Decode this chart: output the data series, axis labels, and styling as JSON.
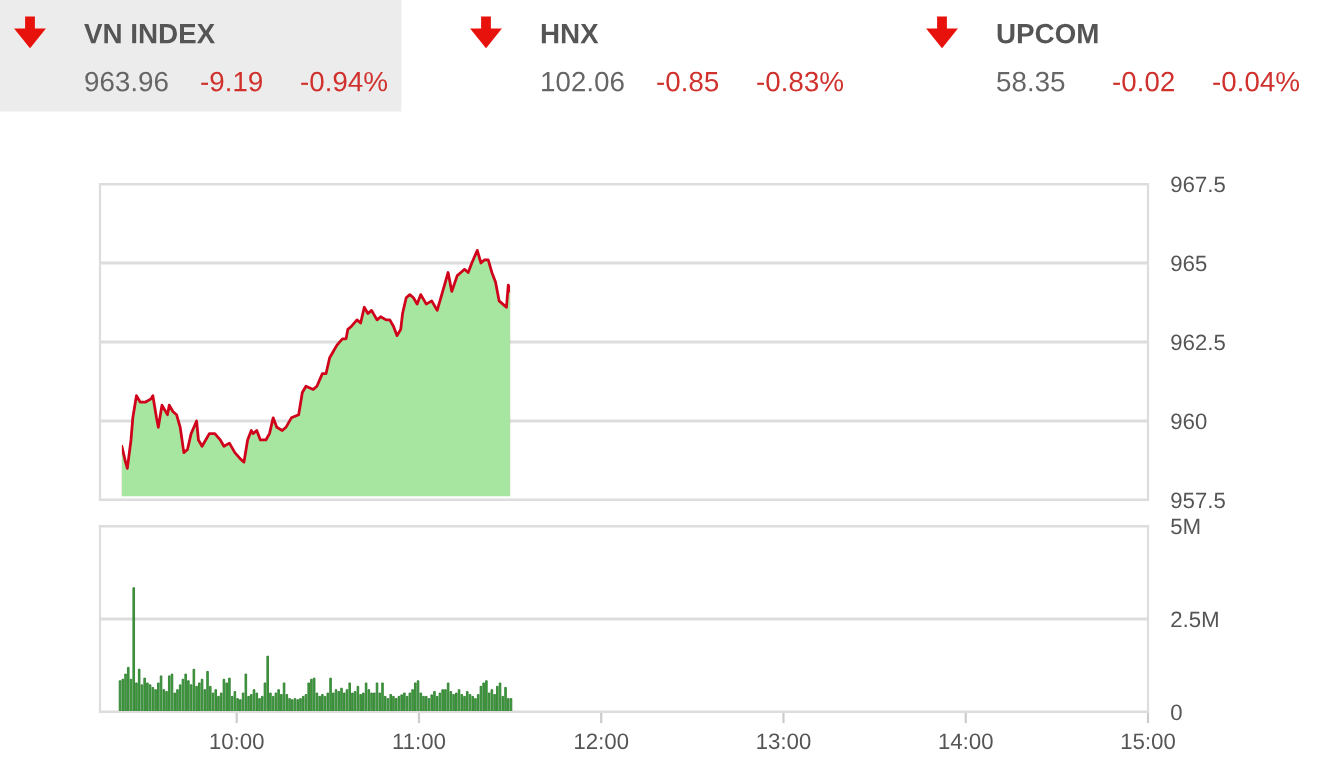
{
  "chart_data": [
    {
      "type": "other",
      "annotations": [
        "VN INDEX",
        "963.96",
        "-9.19",
        "-0.94%",
        "HNX",
        "102.06",
        "-0.85",
        "-0.83%",
        "UPCOM",
        "58.35",
        "-0.02",
        "-0.04%"
      ]
    },
    {
      "type": "area",
      "xlim": [
        9.25,
        15
      ],
      "ylim": [
        957.5,
        967.5
      ],
      "yticks": [
        957.5,
        960,
        962.5,
        965,
        967.5
      ],
      "grid": "y",
      "tick_labels": "y",
      "x": [
        9.36,
        9.37,
        9.39,
        9.4,
        9.42,
        9.43,
        9.45,
        9.47,
        9.5,
        9.53,
        9.54,
        9.56,
        9.57,
        9.59,
        9.62,
        9.63,
        9.65,
        9.67,
        9.69,
        9.71,
        9.73,
        9.75,
        9.78,
        9.79,
        9.81,
        9.85,
        9.88,
        9.91,
        9.93,
        9.96,
        9.99,
        10.02,
        10.04,
        10.06,
        10.08,
        10.09,
        10.11,
        10.13,
        10.16,
        10.18,
        10.2,
        10.22,
        10.25,
        10.27,
        10.3,
        10.34,
        10.36,
        10.38,
        10.42,
        10.44,
        10.47,
        10.49,
        10.51,
        10.53,
        10.55,
        10.58,
        10.6,
        10.61,
        10.63,
        10.66,
        10.68,
        10.7,
        10.72,
        10.74,
        10.77,
        10.79,
        10.82,
        10.84,
        10.86,
        10.88,
        10.9,
        10.91,
        10.93,
        10.95,
        10.97,
        10.99,
        11.01,
        11.03,
        11.04,
        11.07,
        11.1,
        11.12,
        11.14,
        11.16,
        11.18,
        11.21,
        11.23,
        11.25,
        11.27,
        11.29,
        11.32,
        11.34,
        11.36,
        11.38,
        11.4,
        11.42,
        11.44,
        11.46,
        11.48,
        11.49,
        11.51
      ],
      "series": [
        {
          "color": "#a6e6a0",
          "values": [
            959.1,
            959.2,
            958.7,
            958.5,
            959.4,
            960.1,
            960.8,
            960.6,
            960.6,
            960.7,
            960.8,
            960.1,
            959.8,
            960.5,
            960.2,
            960.5,
            960.3,
            960.2,
            959.8,
            959.0,
            959.1,
            959.6,
            960.0,
            959.4,
            959.2,
            959.6,
            959.6,
            959.4,
            959.2,
            959.3,
            959.0,
            958.8,
            958.7,
            959.4,
            959.7,
            959.6,
            959.7,
            959.4,
            959.4,
            959.6,
            960.1,
            959.8,
            959.7,
            959.8,
            960.1,
            960.2,
            960.9,
            961.1,
            961.0,
            961.1,
            961.5,
            961.5,
            962.0,
            962.2,
            962.4,
            962.6,
            962.6,
            962.9,
            963.0,
            963.2,
            963.1,
            963.6,
            963.4,
            963.5,
            963.2,
            963.3,
            963.2,
            963.2,
            963.0,
            962.7,
            962.9,
            963.4,
            963.9,
            964.0,
            963.9,
            963.7,
            964.0,
            963.8,
            963.7,
            963.8,
            963.5,
            963.9,
            964.3,
            964.7,
            964.1,
            964.6,
            964.7,
            964.8,
            964.7,
            965.0,
            965.4,
            965.0,
            965.1,
            965.1,
            964.7,
            964.4,
            963.8,
            963.7,
            963.6,
            964.3,
            964.0
          ]
        }
      ]
    },
    {
      "type": "bar",
      "xlim": [
        9.25,
        15
      ],
      "ylim": [
        0,
        5
      ],
      "yticks": [
        0,
        {
          "value": 2.5,
          "label": "2.5M"
        },
        {
          "value": 5,
          "label": "5M"
        }
      ],
      "grid": "y",
      "xticks": [
        {
          "value": 10,
          "label": "10:00"
        },
        {
          "value": 11,
          "label": "11:00"
        },
        {
          "value": 12,
          "label": "12:00"
        },
        {
          "value": 13,
          "label": "13:00"
        },
        {
          "value": 14,
          "label": "14:00"
        },
        {
          "value": 15,
          "label": "15:00"
        }
      ],
      "x": [
        9.36,
        9.375,
        9.39,
        9.405,
        9.42,
        9.435,
        9.45,
        9.465,
        9.48,
        9.495,
        9.51,
        9.525,
        9.54,
        9.555,
        9.57,
        9.585,
        9.6,
        9.615,
        9.63,
        9.645,
        9.66,
        9.675,
        9.69,
        9.705,
        9.72,
        9.735,
        9.75,
        9.765,
        9.78,
        9.795,
        9.81,
        9.825,
        9.84,
        9.855,
        9.87,
        9.885,
        9.9,
        9.915,
        9.93,
        9.945,
        9.96,
        9.975,
        9.99,
        10.005,
        10.02,
        10.035,
        10.05,
        10.065,
        10.08,
        10.095,
        10.11,
        10.125,
        10.14,
        10.155,
        10.17,
        10.185,
        10.2,
        10.215,
        10.23,
        10.245,
        10.26,
        10.275,
        10.29,
        10.305,
        10.32,
        10.335,
        10.35,
        10.365,
        10.38,
        10.395,
        10.41,
        10.425,
        10.44,
        10.455,
        10.47,
        10.485,
        10.5,
        10.515,
        10.53,
        10.545,
        10.56,
        10.575,
        10.59,
        10.605,
        10.62,
        10.635,
        10.65,
        10.665,
        10.68,
        10.695,
        10.71,
        10.725,
        10.74,
        10.755,
        10.77,
        10.785,
        10.8,
        10.815,
        10.83,
        10.845,
        10.86,
        10.875,
        10.89,
        10.905,
        10.92,
        10.935,
        10.95,
        10.965,
        10.98,
        10.995,
        11.01,
        11.025,
        11.04,
        11.055,
        11.07,
        11.085,
        11.1,
        11.115,
        11.13,
        11.145,
        11.16,
        11.175,
        11.19,
        11.205,
        11.22,
        11.235,
        11.25,
        11.265,
        11.28,
        11.295,
        11.31,
        11.325,
        11.34,
        11.355,
        11.37,
        11.385,
        11.4,
        11.415,
        11.43,
        11.445,
        11.46,
        11.475,
        11.49,
        11.505
      ],
      "series": [
        {
          "color": "#3fa33f",
          "values": [
            0.84,
            0.88,
            1.02,
            1.2,
            0.88,
            3.34,
            0.78,
            1.15,
            0.73,
            0.91,
            0.78,
            0.73,
            0.66,
            0.6,
            0.78,
            0.97,
            0.6,
            0.55,
            0.97,
            1.02,
            0.51,
            0.6,
            0.73,
            0.88,
            1.02,
            0.84,
            0.73,
            1.15,
            0.69,
            0.78,
            0.88,
            0.6,
            1.09,
            0.69,
            0.51,
            0.6,
            0.42,
            0.51,
            0.88,
            0.78,
            0.91,
            0.42,
            0.55,
            0.36,
            0.33,
            0.51,
            1.02,
            0.42,
            0.47,
            0.6,
            0.51,
            0.36,
            0.42,
            0.78,
            1.5,
            0.51,
            0.42,
            0.51,
            0.6,
            0.47,
            0.78,
            0.47,
            0.36,
            0.33,
            0.36,
            0.33,
            0.36,
            0.42,
            0.47,
            0.78,
            0.88,
            0.91,
            0.51,
            0.42,
            0.47,
            0.42,
            0.51,
            0.91,
            0.51,
            0.6,
            0.55,
            0.64,
            0.51,
            0.6,
            0.78,
            0.51,
            0.55,
            0.69,
            0.47,
            0.51,
            0.78,
            0.6,
            0.51,
            0.51,
            0.78,
            0.51,
            0.78,
            0.42,
            0.36,
            0.47,
            0.42,
            0.36,
            0.42,
            0.46,
            0.51,
            0.42,
            0.51,
            0.6,
            0.78,
            0.84,
            0.51,
            0.42,
            0.42,
            0.36,
            0.46,
            0.55,
            0.42,
            0.51,
            0.6,
            0.6,
            0.78,
            0.55,
            0.47,
            0.51,
            0.6,
            0.47,
            0.42,
            0.55,
            0.47,
            0.42,
            0.36,
            0.47,
            0.69,
            0.78,
            0.84,
            0.51,
            0.6,
            0.47,
            0.69,
            0.78,
            0.42,
            0.66,
            0.36,
            0.36
          ]
        }
      ]
    }
  ]
}
